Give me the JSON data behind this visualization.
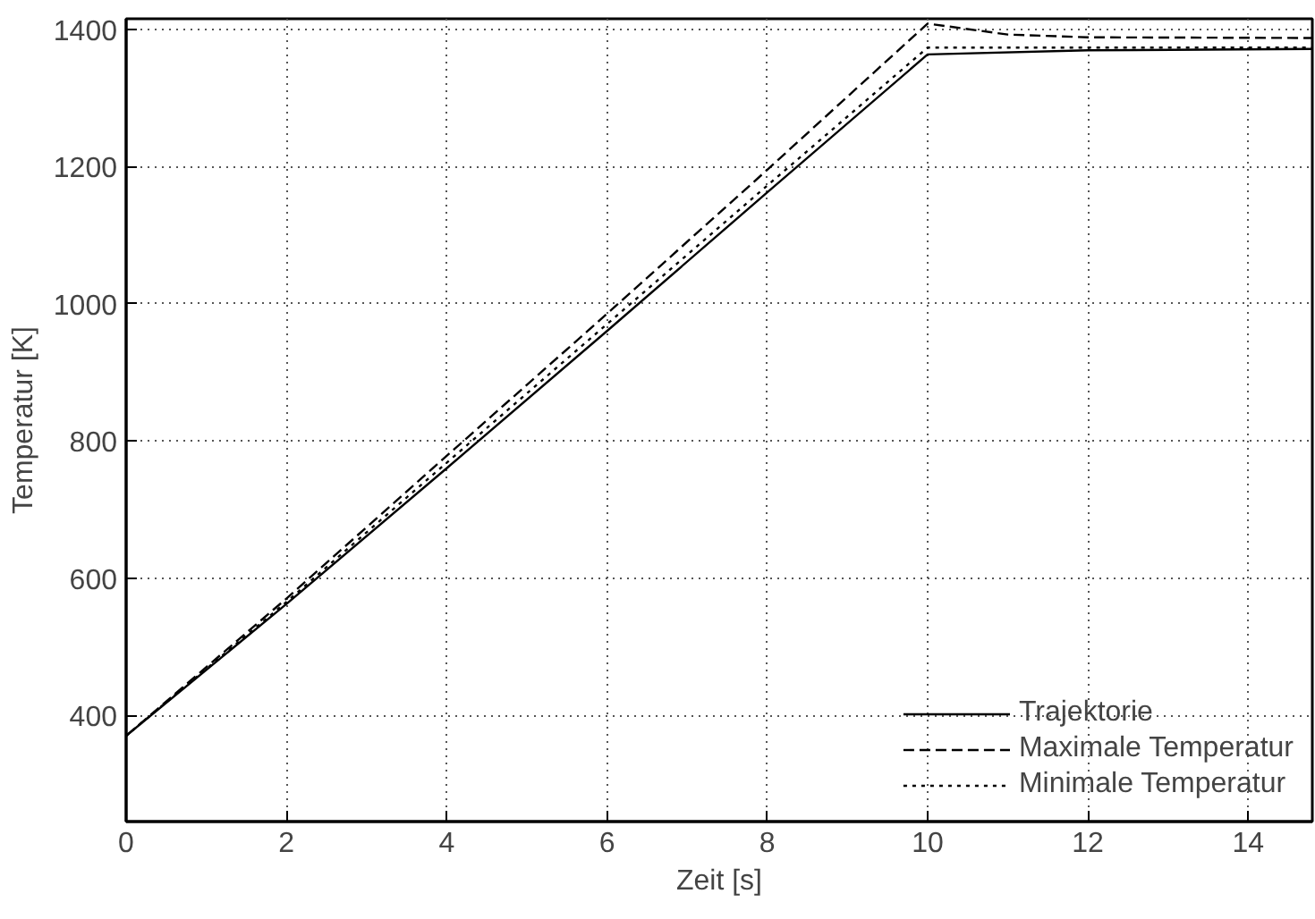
{
  "chart_data": {
    "type": "line",
    "xlabel": "Zeit [s]",
    "ylabel": "Temperatur [K]",
    "xlim": [
      0,
      14.8
    ],
    "ylim": [
      245,
      1415
    ],
    "xticks": [
      0,
      2,
      4,
      6,
      8,
      10,
      12,
      14
    ],
    "yticks": [
      400,
      600,
      800,
      1000,
      1200,
      1400
    ],
    "grid": true,
    "legend": "bottom right",
    "series": [
      {
        "name": "Trajektorie",
        "color": "#000000",
        "line_style": "solid",
        "x": [
          0,
          2,
          4,
          6,
          8,
          10,
          12,
          14.8
        ],
        "values": [
          370,
          562,
          760,
          960,
          1162,
          1363,
          1369,
          1371
        ]
      },
      {
        "name": "Maximale Temperatur",
        "color": "#000000",
        "line_style": "dashed",
        "x": [
          0,
          2,
          4,
          6,
          8,
          10,
          11,
          12,
          14.8
        ],
        "values": [
          370,
          570,
          778,
          985,
          1195,
          1408,
          1392,
          1388,
          1387
        ]
      },
      {
        "name": "Minimale Temperatur",
        "color": "#000000",
        "line_style": "dotted",
        "x": [
          0,
          2,
          4,
          6,
          8,
          10,
          12,
          14.8
        ],
        "values": [
          370,
          565,
          768,
          970,
          1172,
          1373,
          1373,
          1373
        ]
      }
    ]
  }
}
